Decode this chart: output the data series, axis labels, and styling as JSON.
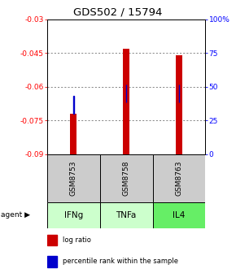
{
  "title": "GDS502 / 15794",
  "ylim_left": [
    -0.09,
    -0.03
  ],
  "yticks_left": [
    -0.09,
    -0.075,
    -0.06,
    -0.045,
    -0.03
  ],
  "ytick_labels_left": [
    "-0.09",
    "-0.075",
    "-0.06",
    "-0.045",
    "-0.03"
  ],
  "ytick_labels_right": [
    "0",
    "25",
    "50",
    "75",
    "100%"
  ],
  "samples": [
    "GSM8753",
    "GSM8758",
    "GSM8763"
  ],
  "agents": [
    "IFNg",
    "TNFa",
    "IL4"
  ],
  "bar_bottom": -0.09,
  "red_bar_tops": [
    -0.072,
    -0.043,
    -0.046
  ],
  "blue_marker_vals": [
    -0.068,
    -0.063,
    -0.063
  ],
  "bar_color_red": "#cc0000",
  "bar_color_blue": "#0000cc",
  "bar_width": 0.12,
  "blue_marker_size": 0.008,
  "grid_color": "#555555",
  "sample_box_color": "#cccccc",
  "agent_box_color_1": "#ccffcc",
  "agent_box_color_2": "#ccffcc",
  "agent_box_color_3": "#66ee66",
  "title_fontsize": 9.5,
  "tick_fontsize": 6.5,
  "label_fontsize": 6.5,
  "legend_fontsize": 6,
  "agent_fontsize": 7.5,
  "sample_fontsize": 6.5
}
